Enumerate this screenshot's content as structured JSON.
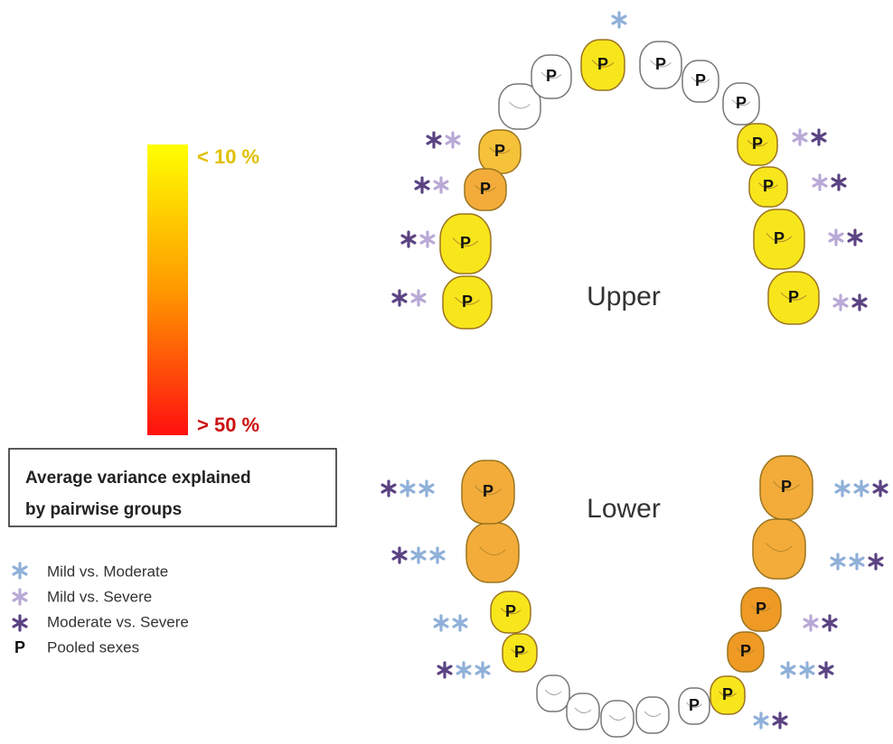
{
  "color_scale": {
    "top_label": "< 10 %",
    "bottom_label": "> 50 %"
  },
  "caption": {
    "lines": [
      "Average  variance explained",
      "by pairwise groups"
    ]
  },
  "legend": [
    {
      "label": "Mild vs. Moderate"
    },
    {
      "label": "Mild vs. Severe"
    },
    {
      "label": "Moderate vs. Severe"
    },
    {
      "symbol": "P",
      "label": "Pooled sexes"
    }
  ],
  "arches": {
    "upper": {
      "label": "Upper"
    },
    "lower": {
      "label": "Lower"
    }
  },
  "upper_teeth": [
    "P",
    "P",
    "P",
    "P",
    "P",
    "P",
    "P",
    "P",
    "P",
    "P",
    "P",
    "P",
    "P"
  ],
  "lower_teeth": [
    "P",
    "P",
    "P",
    "P",
    "P",
    "P",
    "P",
    "P"
  ]
}
